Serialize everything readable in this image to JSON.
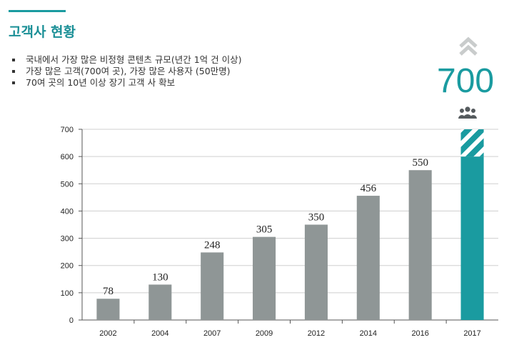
{
  "header": {
    "title": "고객사 현황"
  },
  "bullets": [
    "국내에서 가장 많은 비정형 콘텐츠 규모(년간 1억 건 이상)",
    "가장 많은 고객(700여 곳), 가장 많은 사용자 (50만명)",
    " 70여 곳의 10년 이상 장기 고객 사 확보"
  ],
  "highlight": {
    "value": "700",
    "icon": "people-group-icon",
    "arrow_icon": "double-chevron-up-icon",
    "color": "#1a9ba0"
  },
  "chart_data": {
    "type": "bar",
    "categories": [
      "2002",
      "2004",
      "2007",
      "2009",
      "2012",
      "2014",
      "2016",
      "2017"
    ],
    "values": [
      78,
      130,
      248,
      305,
      350,
      456,
      550,
      700
    ],
    "data_labels": [
      "78",
      "130",
      "248",
      "305",
      "350",
      "456",
      "550",
      ""
    ],
    "ylim": [
      0,
      700
    ],
    "yticks": [
      "0",
      "100",
      "200",
      "300",
      "400",
      "500",
      "600",
      "700"
    ],
    "grid": true,
    "bar_color": "#8f9696",
    "highlight_color": "#1a9ba0"
  }
}
